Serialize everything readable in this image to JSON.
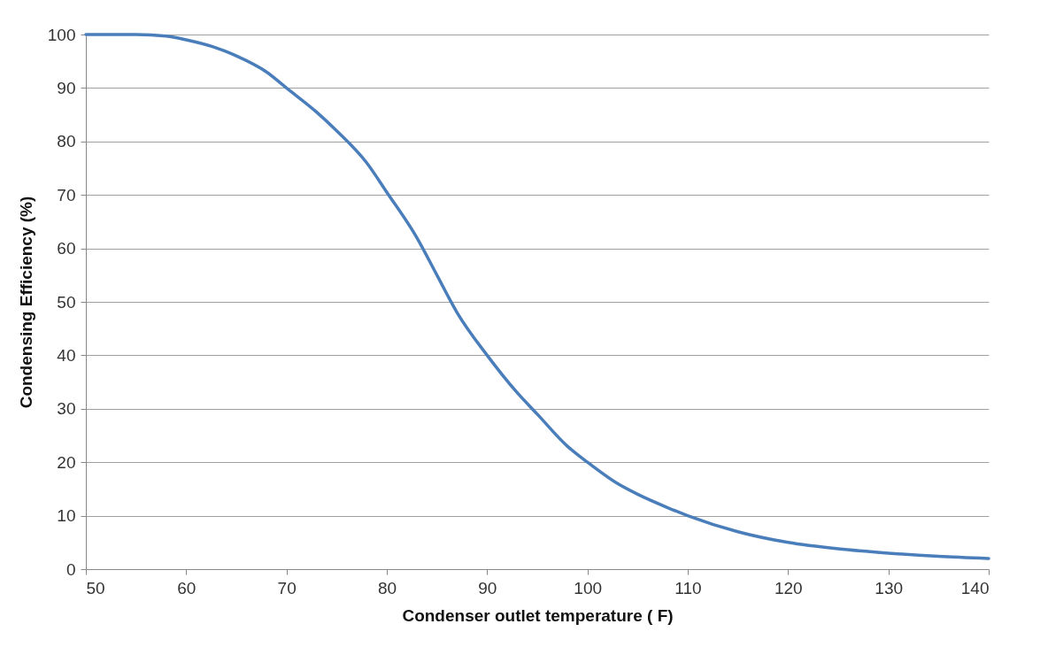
{
  "chart_data": {
    "type": "line",
    "xlabel": "Condenser outlet temperature ( F)",
    "ylabel": "Condensing Efficiency (%)",
    "x": [
      50,
      55,
      58,
      60,
      63,
      65,
      68,
      70,
      73,
      75,
      78,
      80,
      83,
      85,
      87,
      90,
      93,
      95,
      98,
      100,
      103,
      105,
      108,
      110,
      115,
      120,
      125,
      130,
      135,
      140
    ],
    "series": [
      {
        "color": "#4a7ebb",
        "values": [
          100,
          100,
          99.7,
          99,
          97.5,
          96,
          93,
          90,
          85.5,
          82,
          76,
          70.5,
          62,
          55,
          48,
          40,
          33,
          29,
          23,
          20,
          16,
          14,
          11.5,
          10,
          7,
          5,
          3.8,
          3,
          2.4,
          2
        ]
      }
    ],
    "xlim": [
      50,
      140
    ],
    "xticks": [
      50,
      60,
      70,
      80,
      90,
      100,
      110,
      120,
      130,
      140
    ],
    "ylim": [
      0,
      100
    ],
    "yticks": [
      0,
      10,
      20,
      30,
      40,
      50,
      60,
      70,
      80,
      90,
      100
    ],
    "grid": "y",
    "legend": false,
    "marker": "none",
    "line_style": "solid"
  }
}
